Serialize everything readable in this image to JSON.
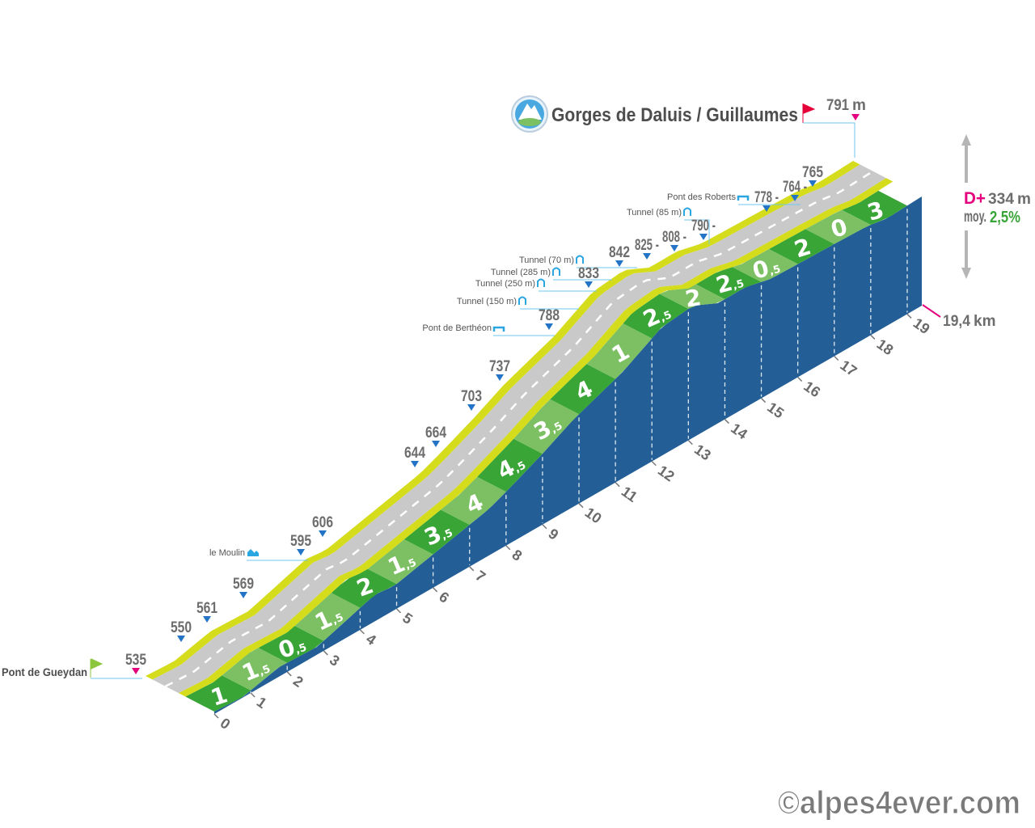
{
  "title": "Gorges de Daluis / Guillaumes",
  "summit": {
    "value": "791",
    "unit": "m"
  },
  "start": {
    "name": "Pont de Gueydan",
    "altitude": "535"
  },
  "stats": {
    "dplus_label": "D+",
    "dplus_value": "334",
    "dplus_unit": "m",
    "avg_label": "moy.",
    "avg_value": "2,5%"
  },
  "distance": {
    "value": "19,4",
    "unit": "km"
  },
  "watermark": "©alpes4ever.com",
  "colors": {
    "front": "#235f96",
    "green": "#3aa537",
    "light_green": "#7cc063",
    "yellow": "#d4dc1c",
    "road": "#c9c9c9",
    "accent_pink": "#e5007e",
    "poi_blue": "#2aa6e0"
  },
  "chart_data": {
    "type": "area",
    "title": "Gorges de Daluis / Guillaumes",
    "xlabel": "",
    "ylabel": "",
    "x_ticks": [
      "0",
      "1",
      "2",
      "3",
      "4",
      "5",
      "6",
      "7",
      "8",
      "9",
      "10",
      "11",
      "12",
      "13",
      "14",
      "15",
      "16",
      "17",
      "18",
      "19"
    ],
    "total_distance_km": 19.4,
    "segment_gradients": [
      "1",
      "1,5",
      "0,5",
      "1,5",
      "2",
      "1,5",
      "3,5",
      "4",
      "4,5",
      "3,5",
      "4",
      "1",
      "2,5",
      "2",
      "2,5",
      "0,5",
      "2",
      "0",
      "3"
    ],
    "elevation_markers": [
      "535",
      "550",
      "561",
      "569",
      "595",
      "606",
      "644",
      "664",
      "703",
      "737",
      "788",
      "833",
      "842",
      "825 -",
      "808 -",
      "790 -",
      "778 -",
      "764 -",
      "765",
      "791"
    ],
    "points_of_interest": [
      "Pont de Gueydan",
      "le Moulin",
      "Pont de Berthéon",
      "Tunnel (150 m)",
      "Tunnel (250 m)",
      "Tunnel (285 m)",
      "Tunnel (70 m)",
      "Tunnel (85 m)",
      "Pont des Roberts"
    ]
  }
}
